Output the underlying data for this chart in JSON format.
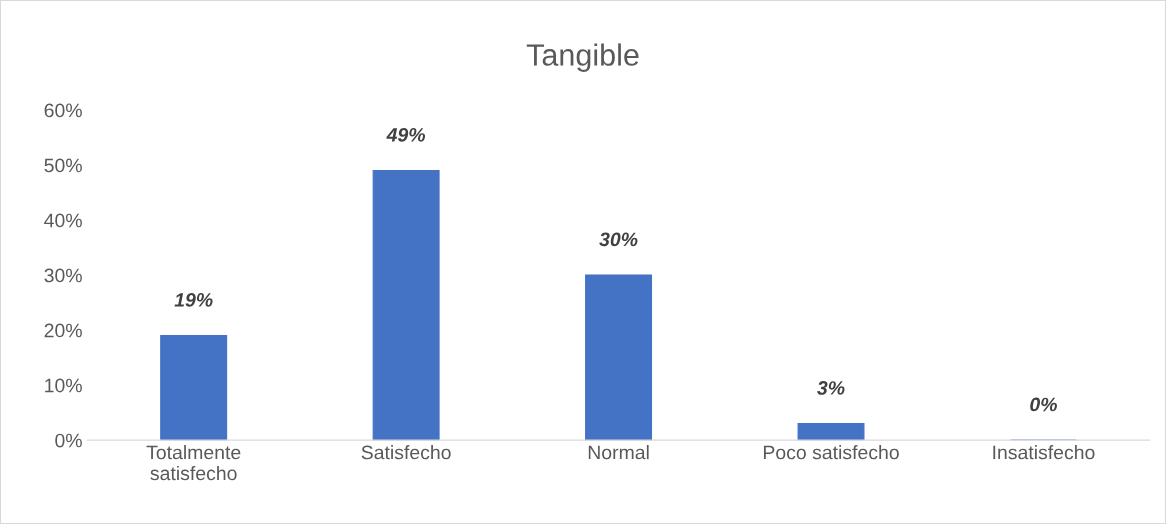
{
  "chart_data": {
    "type": "bar",
    "title": "Tangible",
    "categories": [
      "Totalmente satisfecho",
      "Satisfecho",
      "Normal",
      "Poco satisfecho",
      "Insatisfecho"
    ],
    "values": [
      19,
      49,
      30,
      3,
      0
    ],
    "value_labels": [
      "19%",
      "49%",
      "30%",
      "3%",
      "0%"
    ],
    "color": "#4472c4",
    "ylim": [
      0,
      60
    ],
    "yticks": [
      {
        "value": 0,
        "label": "0%"
      },
      {
        "value": 10,
        "label": "10%"
      },
      {
        "value": 20,
        "label": "20%"
      },
      {
        "value": 30,
        "label": "30%"
      },
      {
        "value": 40,
        "label": "40%"
      },
      {
        "value": 50,
        "label": "50%"
      },
      {
        "value": 60,
        "label": "60%"
      }
    ],
    "grid": false,
    "legend": false
  }
}
